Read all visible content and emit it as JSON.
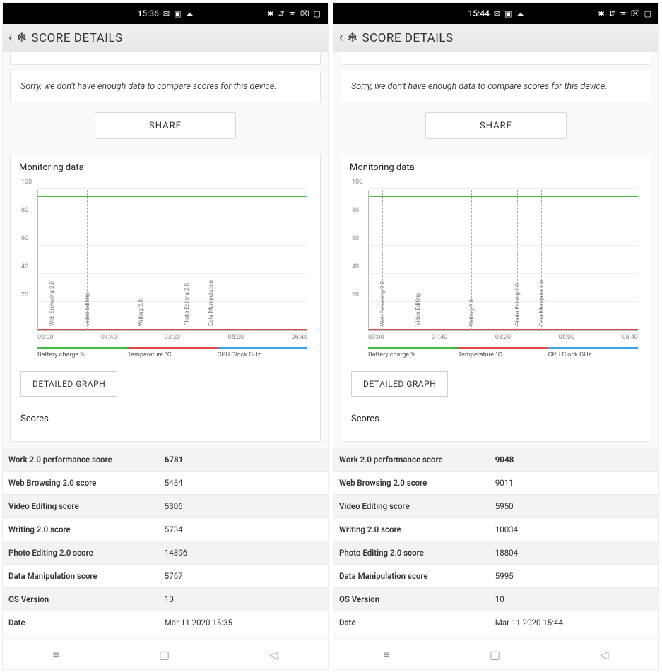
{
  "colors": {
    "accent": "#ea7a1a",
    "battery_line": "#3fbf3f",
    "temp_line": "#e04848",
    "cpu_line": "#3fa0ea",
    "grid": "#eeeeee",
    "axis": "#bbbbbb",
    "row_alt": "#f3f3f3"
  },
  "panes": [
    {
      "status": {
        "time": "15:36",
        "icons_left": [
          "✉",
          "▣",
          "☁"
        ],
        "icons_right": [
          "✱",
          "⇵",
          "ᯤ",
          "⌧",
          "▢"
        ]
      },
      "appbar": {
        "title": "SCORE DETAILS"
      },
      "msg": "Sorry, we don't have enough data to compare scores for this device.",
      "share_label": "SHARE",
      "monitor_title": "Monitoring data",
      "chart": {
        "ylim": [
          0,
          100
        ],
        "ystep": 20,
        "xticks": [
          "00:00",
          "01:40",
          "03:20",
          "05:00",
          "06:40"
        ],
        "markers": [
          {
            "pos": 5,
            "label": "Web Browsing 2.0"
          },
          {
            "pos": 18,
            "label": "Video Editing"
          },
          {
            "pos": 38,
            "label": "Writing 2.0"
          },
          {
            "pos": 55,
            "label": "Photo Editing 2.0"
          },
          {
            "pos": 64,
            "label": "Data Manipulation"
          }
        ],
        "legend": [
          {
            "label": "Battery charge %",
            "color": "#3fbf3f"
          },
          {
            "label": "Temperature °C",
            "color": "#e04848"
          },
          {
            "label": "CPU Clock GHz",
            "color": "#3fa0ea"
          }
        ]
      },
      "detailed_label": "DETAILED GRAPH",
      "scores_title": "Scores",
      "scores": [
        {
          "k": "Work 2.0 performance score",
          "v": "6781",
          "main": true
        },
        {
          "k": "Web Browsing 2.0 score",
          "v": "5484"
        },
        {
          "k": "Video Editing score",
          "v": "5306"
        },
        {
          "k": "Writing 2.0 score",
          "v": "5734"
        },
        {
          "k": "Photo Editing 2.0 score",
          "v": "14896"
        },
        {
          "k": "Data Manipulation score",
          "v": "5767"
        },
        {
          "k": "OS Version",
          "v": "10"
        },
        {
          "k": "Date",
          "v": "Mar 11 2020 15:35"
        }
      ]
    },
    {
      "status": {
        "time": "15:44",
        "icons_left": [
          "✉",
          "▣",
          "☁"
        ],
        "icons_right": [
          "✱",
          "⇵",
          "ᯤ",
          "⌧",
          "▢"
        ]
      },
      "appbar": {
        "title": "SCORE DETAILS"
      },
      "msg": "Sorry, we don't have enough data to compare scores for this device.",
      "share_label": "SHARE",
      "monitor_title": "Monitoring data",
      "chart": {
        "ylim": [
          0,
          100
        ],
        "ystep": 20,
        "xticks": [
          "00:00",
          "01:40",
          "03:20",
          "05:00",
          "06:40"
        ],
        "markers": [
          {
            "pos": 5,
            "label": "Web Browsing 2.0"
          },
          {
            "pos": 18,
            "label": "Video Editing"
          },
          {
            "pos": 38,
            "label": "Writing 2.0"
          },
          {
            "pos": 55,
            "label": "Photo Editing 2.0"
          },
          {
            "pos": 64,
            "label": "Data Manipulation"
          }
        ],
        "legend": [
          {
            "label": "Battery charge %",
            "color": "#3fbf3f"
          },
          {
            "label": "Temperature °C",
            "color": "#e04848"
          },
          {
            "label": "CPU Clock GHz",
            "color": "#3fa0ea"
          }
        ]
      },
      "detailed_label": "DETAILED GRAPH",
      "scores_title": "Scores",
      "scores": [
        {
          "k": "Work 2.0 performance score",
          "v": "9048",
          "main": true
        },
        {
          "k": "Web Browsing 2.0 score",
          "v": "9011"
        },
        {
          "k": "Video Editing score",
          "v": "5950"
        },
        {
          "k": "Writing 2.0 score",
          "v": "10034"
        },
        {
          "k": "Photo Editing 2.0 score",
          "v": "18804"
        },
        {
          "k": "Data Manipulation score",
          "v": "5995"
        },
        {
          "k": "OS Version",
          "v": "10"
        },
        {
          "k": "Date",
          "v": "Mar 11 2020 15:44"
        }
      ]
    }
  ]
}
